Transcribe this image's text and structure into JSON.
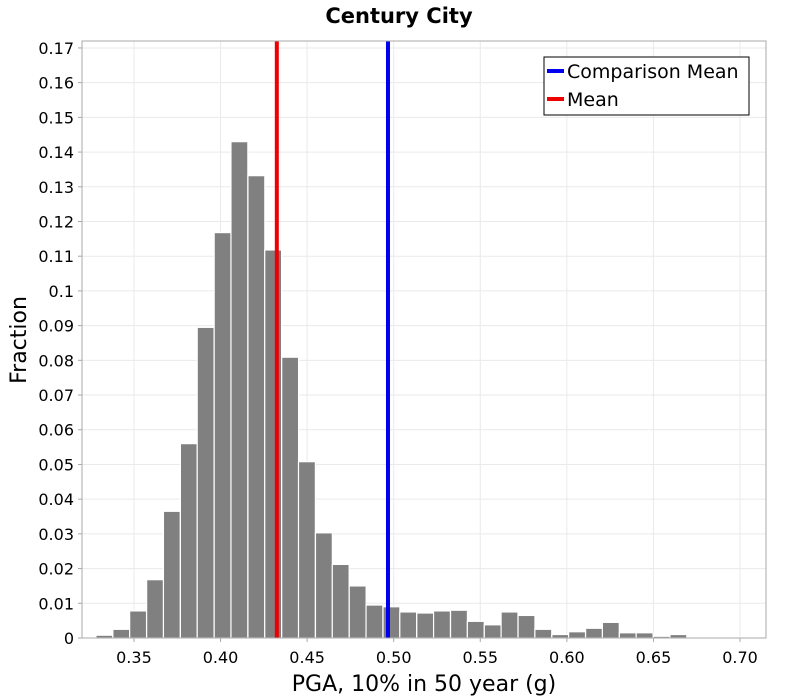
{
  "chart_data": {
    "type": "bar",
    "title": "Century City",
    "xlabel": "PGA, 10% in 50 year (g)",
    "ylabel": "Fraction",
    "xlim": [
      0.32,
      0.715
    ],
    "ylim": [
      0,
      0.172
    ],
    "xticks": [
      "0.35",
      "0.40",
      "0.45",
      "0.50",
      "0.55",
      "0.60",
      "0.65",
      "0.70"
    ],
    "xtick_values": [
      0.35,
      0.4,
      0.45,
      0.5,
      0.55,
      0.6,
      0.65,
      0.7
    ],
    "yticks": [
      "0",
      "0.01",
      "0.02",
      "0.03",
      "0.04",
      "0.05",
      "0.06",
      "0.07",
      "0.08",
      "0.09",
      "0.1",
      "0.11",
      "0.12",
      "0.13",
      "0.14",
      "0.15",
      "0.16",
      "0.17"
    ],
    "ytick_values": [
      0,
      0.01,
      0.02,
      0.03,
      0.04,
      0.05,
      0.06,
      0.07,
      0.08,
      0.09,
      0.1,
      0.11,
      0.12,
      0.13,
      0.14,
      0.15,
      0.16,
      0.17
    ],
    "grid": true,
    "legend_position": "top-right",
    "bin_width": 0.00975,
    "bins": [
      {
        "x": 0.3232,
        "value": 0.0003
      },
      {
        "x": 0.3329,
        "value": 0.0008
      },
      {
        "x": 0.3427,
        "value": 0.0025
      },
      {
        "x": 0.3524,
        "value": 0.0078
      },
      {
        "x": 0.3622,
        "value": 0.0168
      },
      {
        "x": 0.3719,
        "value": 0.0365
      },
      {
        "x": 0.3817,
        "value": 0.056
      },
      {
        "x": 0.3914,
        "value": 0.0895
      },
      {
        "x": 0.4012,
        "value": 0.1168
      },
      {
        "x": 0.4109,
        "value": 0.143
      },
      {
        "x": 0.4207,
        "value": 0.1332
      },
      {
        "x": 0.4304,
        "value": 0.1118
      },
      {
        "x": 0.4402,
        "value": 0.0809
      },
      {
        "x": 0.4499,
        "value": 0.0508
      },
      {
        "x": 0.4597,
        "value": 0.0303
      },
      {
        "x": 0.4694,
        "value": 0.0212
      },
      {
        "x": 0.4792,
        "value": 0.015
      },
      {
        "x": 0.4889,
        "value": 0.0095
      },
      {
        "x": 0.4987,
        "value": 0.009
      },
      {
        "x": 0.5084,
        "value": 0.0075
      },
      {
        "x": 0.5182,
        "value": 0.0072
      },
      {
        "x": 0.5279,
        "value": 0.0078
      },
      {
        "x": 0.5377,
        "value": 0.008
      },
      {
        "x": 0.5474,
        "value": 0.0048
      },
      {
        "x": 0.5572,
        "value": 0.0038
      },
      {
        "x": 0.5669,
        "value": 0.0075
      },
      {
        "x": 0.5767,
        "value": 0.0065
      },
      {
        "x": 0.5864,
        "value": 0.0025
      },
      {
        "x": 0.5962,
        "value": 0.001
      },
      {
        "x": 0.6059,
        "value": 0.0018
      },
      {
        "x": 0.6157,
        "value": 0.0028
      },
      {
        "x": 0.6254,
        "value": 0.0045
      },
      {
        "x": 0.6352,
        "value": 0.0015
      },
      {
        "x": 0.6449,
        "value": 0.0015
      },
      {
        "x": 0.6547,
        "value": 0.0005
      },
      {
        "x": 0.6644,
        "value": 0.001
      },
      {
        "x": 0.6742,
        "value": 0.0003
      },
      {
        "x": 0.6839,
        "value": 0.0003
      },
      {
        "x": 0.6937,
        "value": 0.0003
      },
      {
        "x": 0.7034,
        "value": 0.0002
      }
    ],
    "reference_lines": [
      {
        "name": "Comparison Mean",
        "x": 0.4967,
        "color": "#0000ee"
      },
      {
        "name": "Mean",
        "x": 0.4325,
        "color": "#ee0000"
      }
    ],
    "bar_color": "#808080",
    "grid_color": "#eaeaea",
    "axis_color": "#a8a8a8"
  }
}
